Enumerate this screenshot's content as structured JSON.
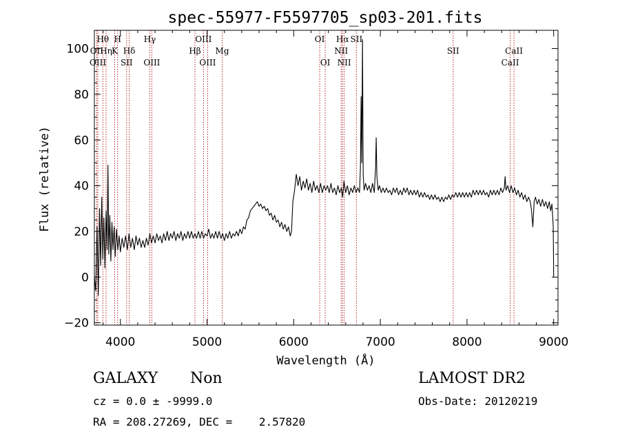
{
  "chart_data": {
    "type": "line",
    "title": "spec-55977-F5597705_sp03-201.fits",
    "xlabel": "Wavelength (Å)",
    "ylabel": "Flux (relative)",
    "xlim": [
      3700,
      9050
    ],
    "ylim": [
      -21,
      108
    ],
    "x_ticks": [
      4000,
      5000,
      6000,
      7000,
      8000,
      9000
    ],
    "y_ticks": [
      -20,
      0,
      20,
      40,
      60,
      80,
      100
    ],
    "grid": false,
    "series": [
      {
        "color": "#000000",
        "points": [
          [
            3700,
            0
          ],
          [
            3715,
            -6
          ],
          [
            3730,
            22
          ],
          [
            3745,
            -8
          ],
          [
            3760,
            30
          ],
          [
            3772,
            5
          ],
          [
            3785,
            35
          ],
          [
            3797,
            8
          ],
          [
            3810,
            26
          ],
          [
            3822,
            4
          ],
          [
            3835,
            29
          ],
          [
            3847,
            12
          ],
          [
            3857,
            49
          ],
          [
            3866,
            10
          ],
          [
            3878,
            27
          ],
          [
            3890,
            7
          ],
          [
            3903,
            24
          ],
          [
            3915,
            12
          ],
          [
            3928,
            22
          ],
          [
            3940,
            9
          ],
          [
            3955,
            21
          ],
          [
            3970,
            12
          ],
          [
            3985,
            18
          ],
          [
            4000,
            11
          ],
          [
            4020,
            17
          ],
          [
            4040,
            13
          ],
          [
            4060,
            18
          ],
          [
            4080,
            12
          ],
          [
            4100,
            19
          ],
          [
            4120,
            13
          ],
          [
            4140,
            17
          ],
          [
            4160,
            12
          ],
          [
            4180,
            18
          ],
          [
            4200,
            14
          ],
          [
            4220,
            17
          ],
          [
            4240,
            13
          ],
          [
            4260,
            16
          ],
          [
            4280,
            13
          ],
          [
            4300,
            17
          ],
          [
            4320,
            14
          ],
          [
            4340,
            19
          ],
          [
            4360,
            15
          ],
          [
            4380,
            18
          ],
          [
            4400,
            15
          ],
          [
            4420,
            19
          ],
          [
            4440,
            16
          ],
          [
            4460,
            18
          ],
          [
            4480,
            15
          ],
          [
            4500,
            19
          ],
          [
            4520,
            16
          ],
          [
            4540,
            20
          ],
          [
            4560,
            16
          ],
          [
            4580,
            19
          ],
          [
            4600,
            17
          ],
          [
            4620,
            20
          ],
          [
            4640,
            16
          ],
          [
            4660,
            19
          ],
          [
            4680,
            17
          ],
          [
            4700,
            20
          ],
          [
            4720,
            16
          ],
          [
            4740,
            19
          ],
          [
            4760,
            17
          ],
          [
            4780,
            20
          ],
          [
            4800,
            17
          ],
          [
            4820,
            20
          ],
          [
            4840,
            17
          ],
          [
            4860,
            19
          ],
          [
            4880,
            17
          ],
          [
            4900,
            20
          ],
          [
            4920,
            17
          ],
          [
            4940,
            20
          ],
          [
            4960,
            17
          ],
          [
            4980,
            19
          ],
          [
            5000,
            18
          ],
          [
            5020,
            21
          ],
          [
            5040,
            17
          ],
          [
            5060,
            19
          ],
          [
            5080,
            17
          ],
          [
            5100,
            20
          ],
          [
            5120,
            17
          ],
          [
            5140,
            20
          ],
          [
            5160,
            17
          ],
          [
            5180,
            19
          ],
          [
            5200,
            16
          ],
          [
            5220,
            19
          ],
          [
            5240,
            17
          ],
          [
            5260,
            20
          ],
          [
            5280,
            17
          ],
          [
            5300,
            19
          ],
          [
            5320,
            18
          ],
          [
            5340,
            20
          ],
          [
            5360,
            18
          ],
          [
            5380,
            21
          ],
          [
            5400,
            19
          ],
          [
            5420,
            22
          ],
          [
            5440,
            21
          ],
          [
            5460,
            25
          ],
          [
            5480,
            26
          ],
          [
            5500,
            29
          ],
          [
            5520,
            30
          ],
          [
            5540,
            31
          ],
          [
            5560,
            32
          ],
          [
            5580,
            33
          ],
          [
            5600,
            31
          ],
          [
            5620,
            32
          ],
          [
            5640,
            30
          ],
          [
            5660,
            31
          ],
          [
            5680,
            29
          ],
          [
            5700,
            30
          ],
          [
            5720,
            27
          ],
          [
            5740,
            28
          ],
          [
            5760,
            25
          ],
          [
            5780,
            27
          ],
          [
            5800,
            24
          ],
          [
            5820,
            25
          ],
          [
            5840,
            22
          ],
          [
            5860,
            24
          ],
          [
            5880,
            21
          ],
          [
            5900,
            23
          ],
          [
            5920,
            20
          ],
          [
            5940,
            22
          ],
          [
            5960,
            18
          ],
          [
            5975,
            20
          ],
          [
            5990,
            33
          ],
          [
            6010,
            38
          ],
          [
            6030,
            45
          ],
          [
            6050,
            40
          ],
          [
            6070,
            44
          ],
          [
            6090,
            38
          ],
          [
            6110,
            42
          ],
          [
            6130,
            39
          ],
          [
            6150,
            43
          ],
          [
            6170,
            38
          ],
          [
            6190,
            41
          ],
          [
            6210,
            37
          ],
          [
            6230,
            42
          ],
          [
            6250,
            38
          ],
          [
            6270,
            40
          ],
          [
            6290,
            37
          ],
          [
            6310,
            41
          ],
          [
            6330,
            37
          ],
          [
            6350,
            40
          ],
          [
            6370,
            38
          ],
          [
            6390,
            40
          ],
          [
            6410,
            37
          ],
          [
            6430,
            41
          ],
          [
            6450,
            37
          ],
          [
            6470,
            39
          ],
          [
            6490,
            36
          ],
          [
            6510,
            40
          ],
          [
            6530,
            37
          ],
          [
            6550,
            39
          ],
          [
            6565,
            35
          ],
          [
            6580,
            42
          ],
          [
            6600,
            37
          ],
          [
            6620,
            40
          ],
          [
            6640,
            36
          ],
          [
            6660,
            39
          ],
          [
            6680,
            37
          ],
          [
            6700,
            40
          ],
          [
            6720,
            37
          ],
          [
            6740,
            39
          ],
          [
            6760,
            37
          ],
          [
            6770,
            48
          ],
          [
            6778,
            79
          ],
          [
            6786,
            50
          ],
          [
            6794,
            104
          ],
          [
            6802,
            45
          ],
          [
            6812,
            38
          ],
          [
            6830,
            41
          ],
          [
            6850,
            38
          ],
          [
            6870,
            40
          ],
          [
            6890,
            37
          ],
          [
            6910,
            41
          ],
          [
            6930,
            37
          ],
          [
            6945,
            48
          ],
          [
            6952,
            61
          ],
          [
            6960,
            44
          ],
          [
            6975,
            38
          ],
          [
            6990,
            40
          ],
          [
            7010,
            37
          ],
          [
            7030,
            39
          ],
          [
            7050,
            37
          ],
          [
            7070,
            39
          ],
          [
            7090,
            37
          ],
          [
            7110,
            38
          ],
          [
            7130,
            36
          ],
          [
            7150,
            39
          ],
          [
            7170,
            37
          ],
          [
            7190,
            39
          ],
          [
            7210,
            36
          ],
          [
            7230,
            38
          ],
          [
            7250,
            36
          ],
          [
            7270,
            39
          ],
          [
            7290,
            37
          ],
          [
            7310,
            39
          ],
          [
            7330,
            36
          ],
          [
            7350,
            38
          ],
          [
            7370,
            36
          ],
          [
            7390,
            38
          ],
          [
            7410,
            36
          ],
          [
            7430,
            38
          ],
          [
            7450,
            35
          ],
          [
            7470,
            37
          ],
          [
            7490,
            35
          ],
          [
            7510,
            37
          ],
          [
            7530,
            35
          ],
          [
            7550,
            36
          ],
          [
            7570,
            34
          ],
          [
            7590,
            36
          ],
          [
            7610,
            34
          ],
          [
            7630,
            36
          ],
          [
            7650,
            34
          ],
          [
            7670,
            35
          ],
          [
            7690,
            33
          ],
          [
            7710,
            35
          ],
          [
            7730,
            33
          ],
          [
            7750,
            35
          ],
          [
            7770,
            34
          ],
          [
            7790,
            36
          ],
          [
            7810,
            34
          ],
          [
            7830,
            36
          ],
          [
            7850,
            35
          ],
          [
            7870,
            37
          ],
          [
            7890,
            35
          ],
          [
            7910,
            37
          ],
          [
            7930,
            35
          ],
          [
            7950,
            37
          ],
          [
            7970,
            35
          ],
          [
            7990,
            37
          ],
          [
            8010,
            35
          ],
          [
            8030,
            37
          ],
          [
            8050,
            35
          ],
          [
            8070,
            38
          ],
          [
            8090,
            36
          ],
          [
            8110,
            38
          ],
          [
            8130,
            36
          ],
          [
            8150,
            38
          ],
          [
            8170,
            36
          ],
          [
            8190,
            38
          ],
          [
            8210,
            36
          ],
          [
            8230,
            37
          ],
          [
            8250,
            35
          ],
          [
            8270,
            38
          ],
          [
            8290,
            36
          ],
          [
            8310,
            38
          ],
          [
            8330,
            36
          ],
          [
            8350,
            38
          ],
          [
            8370,
            36
          ],
          [
            8390,
            39
          ],
          [
            8410,
            37
          ],
          [
            8430,
            39
          ],
          [
            8440,
            44
          ],
          [
            8450,
            38
          ],
          [
            8470,
            40
          ],
          [
            8490,
            37
          ],
          [
            8510,
            40
          ],
          [
            8530,
            37
          ],
          [
            8550,
            39
          ],
          [
            8570,
            36
          ],
          [
            8590,
            38
          ],
          [
            8610,
            35
          ],
          [
            8630,
            37
          ],
          [
            8650,
            34
          ],
          [
            8670,
            36
          ],
          [
            8690,
            33
          ],
          [
            8710,
            35
          ],
          [
            8730,
            33
          ],
          [
            8745,
            29
          ],
          [
            8760,
            22
          ],
          [
            8775,
            33
          ],
          [
            8790,
            35
          ],
          [
            8810,
            32
          ],
          [
            8830,
            34
          ],
          [
            8850,
            31
          ],
          [
            8870,
            34
          ],
          [
            8890,
            31
          ],
          [
            8910,
            33
          ],
          [
            8930,
            30
          ],
          [
            8950,
            33
          ],
          [
            8965,
            29
          ],
          [
            8980,
            32
          ],
          [
            8995,
            22
          ],
          [
            9000,
            0
          ]
        ]
      }
    ],
    "line_markers": [
      {
        "label": "Hθ",
        "x": 3798,
        "row": 0
      },
      {
        "label": "OII",
        "x": 3727,
        "row": 1
      },
      {
        "label": "OIII",
        "x": 3740,
        "row": 2
      },
      {
        "label": "Hη",
        "x": 3835,
        "row": 1
      },
      {
        "label": "H",
        "x": 3968,
        "row": 0
      },
      {
        "label": "K",
        "x": 3934,
        "row": 1
      },
      {
        "label": "Hδ",
        "x": 4102,
        "row": 1
      },
      {
        "label": "SII",
        "x": 4072,
        "row": 2
      },
      {
        "label": "Hγ",
        "x": 4340,
        "row": 0
      },
      {
        "label": "OIII",
        "x": 4363,
        "row": 2
      },
      {
        "label": "OIII",
        "x": 4959,
        "row": 0
      },
      {
        "label": "Hβ",
        "x": 4861,
        "row": 1
      },
      {
        "label": "OIII",
        "x": 5007,
        "row": 2
      },
      {
        "label": "Mg",
        "x": 5175,
        "row": 1
      },
      {
        "label": "OI",
        "x": 6300,
        "row": 0
      },
      {
        "label": "OI",
        "x": 6364,
        "row": 2
      },
      {
        "label": "Hα",
        "x": 6563,
        "row": 0
      },
      {
        "label": "SII",
        "x": 6724,
        "row": 0
      },
      {
        "label": "NII",
        "x": 6548,
        "row": 1
      },
      {
        "label": "NII",
        "x": 6583,
        "row": 2
      },
      {
        "label": "SII",
        "x": 7840,
        "row": 1
      },
      {
        "label": "CaII",
        "x": 8542,
        "row": 1
      },
      {
        "label": "CaII",
        "x": 8498,
        "row": 2
      }
    ],
    "marker_color": "#b22222"
  },
  "info": {
    "object_class": "GALAXY",
    "subclass": "Non",
    "survey": "LAMOST DR2",
    "cz": "cz = 0.0 ± -9999.0",
    "obs_date": "Obs-Date: 20120219",
    "coords": "RA = 208.27269, DEC =    2.57820"
  }
}
